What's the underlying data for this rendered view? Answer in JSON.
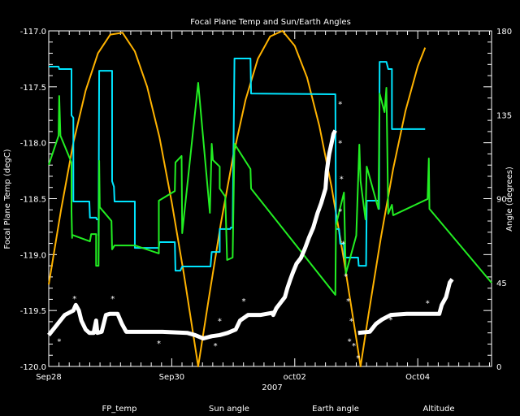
{
  "chart_data": {
    "type": "line",
    "title": "Focal Plane Temp and Sun/Earth Angles",
    "xlabel": "2007",
    "ylabel": "Focal Plane Temp (degC)",
    "y2label": "Angle (degrees)",
    "x_units": "days since Sep28 00:00",
    "xlim": [
      0,
      7.2
    ],
    "ylim": [
      -120.0,
      -117.0
    ],
    "y2lim": [
      0,
      180
    ],
    "x_ticks": [
      {
        "v": 0,
        "label": "Sep28"
      },
      {
        "v": 2,
        "label": "Sep30"
      },
      {
        "v": 4,
        "label": "oct02"
      },
      {
        "v": 6,
        "label": "Oct04"
      }
    ],
    "y_ticks": [
      {
        "v": -117.0,
        "label": "-117.0"
      },
      {
        "v": -117.5,
        "label": "-117.5"
      },
      {
        "v": -118.0,
        "label": "-118.0"
      },
      {
        "v": -118.5,
        "label": "-118.5"
      },
      {
        "v": -119.0,
        "label": "-119.0"
      },
      {
        "v": -119.5,
        "label": "-119.5"
      },
      {
        "v": -120.0,
        "label": "-120.0"
      }
    ],
    "y2_ticks": [
      {
        "v": 0,
        "label": "0"
      },
      {
        "v": 45,
        "label": "45"
      },
      {
        "v": 90,
        "label": "90"
      },
      {
        "v": 135,
        "label": "135"
      },
      {
        "v": 180,
        "label": "180"
      }
    ],
    "grid": false,
    "legend_placement": "bottom",
    "series": [
      {
        "name": "FP_temp",
        "color": "#ffffff",
        "axis": "left",
        "style": "scatter-line",
        "points": [
          [
            0,
            -119.72
          ],
          [
            0.13,
            -119.63
          ],
          [
            0.26,
            -119.54
          ],
          [
            0.4,
            -119.5
          ],
          [
            0.44,
            -119.45
          ],
          [
            0.49,
            -119.5
          ],
          [
            0.53,
            -119.59
          ],
          [
            0.6,
            -119.67
          ],
          [
            0.66,
            -119.7
          ],
          [
            0.73,
            -119.7
          ],
          [
            0.77,
            -119.59
          ],
          [
            0.79,
            -119.7
          ],
          [
            0.86,
            -119.69
          ],
          [
            0.93,
            -119.54
          ],
          [
            0.99,
            -119.53
          ],
          [
            1.12,
            -119.53
          ],
          [
            1.19,
            -119.62
          ],
          [
            1.26,
            -119.69
          ],
          [
            1.46,
            -119.69
          ],
          [
            1.85,
            -119.69
          ],
          [
            2.25,
            -119.7
          ],
          [
            2.38,
            -119.72
          ],
          [
            2.51,
            -119.75
          ],
          [
            2.65,
            -119.73
          ],
          [
            2.78,
            -119.72
          ],
          [
            2.91,
            -119.7
          ],
          [
            3.04,
            -119.67
          ],
          [
            3.11,
            -119.59
          ],
          [
            3.24,
            -119.54
          ],
          [
            3.44,
            -119.54
          ],
          [
            3.64,
            -119.52
          ],
          [
            3.65,
            -119.54
          ],
          [
            3.7,
            -119.48
          ],
          [
            3.77,
            -119.43
          ],
          [
            3.84,
            -119.38
          ],
          [
            3.88,
            -119.3
          ],
          [
            3.93,
            -119.22
          ],
          [
            3.97,
            -119.16
          ],
          [
            4.03,
            -119.08
          ],
          [
            4.1,
            -119.03
          ],
          [
            4.17,
            -118.94
          ],
          [
            4.23,
            -118.85
          ],
          [
            4.3,
            -118.76
          ],
          [
            4.37,
            -118.63
          ],
          [
            4.43,
            -118.54
          ],
          [
            4.5,
            -118.41
          ],
          [
            4.52,
            -118.26
          ],
          [
            4.56,
            -118.1
          ],
          [
            4.6,
            -118.0
          ],
          [
            4.63,
            -117.92
          ],
          [
            4.66,
            -117.89
          ]
        ],
        "gap_after_index": 50,
        "points_after": [
          [
            5.03,
            -119.7
          ],
          [
            5.22,
            -119.69
          ],
          [
            5.32,
            -119.62
          ],
          [
            5.42,
            -119.58
          ],
          [
            5.56,
            -119.54
          ],
          [
            5.82,
            -119.53
          ],
          [
            6.35,
            -119.53
          ],
          [
            6.39,
            -119.45
          ],
          [
            6.46,
            -119.38
          ],
          [
            6.52,
            -119.25
          ],
          [
            6.56,
            -119.22
          ]
        ],
        "outliers": [
          [
            4.74,
            -117.65
          ],
          [
            4.74,
            -118.0
          ],
          [
            4.76,
            -118.32
          ],
          [
            4.74,
            -118.61
          ],
          [
            4.79,
            -118.9
          ],
          [
            4.83,
            -119.19
          ],
          [
            4.87,
            -119.41
          ],
          [
            4.92,
            -119.59
          ],
          [
            4.89,
            -119.77
          ],
          [
            4.96,
            -119.81
          ],
          [
            5.03,
            -119.92
          ],
          [
            0.42,
            -119.39
          ],
          [
            1.04,
            -119.39
          ],
          [
            0.17,
            -119.77
          ],
          [
            1.79,
            -119.79
          ],
          [
            2.71,
            -119.81
          ],
          [
            3.17,
            -119.41
          ],
          [
            2.78,
            -119.59
          ],
          [
            6.16,
            -119.43
          ],
          [
            5.56,
            -119.58
          ]
        ]
      },
      {
        "name": "Sun angle",
        "color": "#00e5ff",
        "axis": "right",
        "points": [
          [
            0,
            160.8
          ],
          [
            0.16,
            160.8
          ],
          [
            0.17,
            159.5
          ],
          [
            0.37,
            159.5
          ],
          [
            0.37,
            134.7
          ],
          [
            0.4,
            133.4
          ],
          [
            0.4,
            88.5
          ],
          [
            0.66,
            88.5
          ],
          [
            0.67,
            79.8
          ],
          [
            0.77,
            79.8
          ],
          [
            0.78,
            78.9
          ],
          [
            0.81,
            78.9
          ],
          [
            0.81,
            70.2
          ],
          [
            0.82,
            158.6
          ],
          [
            1.03,
            158.6
          ],
          [
            1.03,
            99.4
          ],
          [
            1.06,
            96.4
          ],
          [
            1.07,
            88.5
          ],
          [
            1.4,
            88.5
          ],
          [
            1.4,
            63.6
          ],
          [
            1.79,
            63.6
          ],
          [
            1.8,
            66.7
          ],
          [
            2.05,
            66.7
          ],
          [
            2.06,
            51.4
          ],
          [
            2.14,
            51.4
          ],
          [
            2.17,
            53.6
          ],
          [
            2.63,
            53.6
          ],
          [
            2.65,
            61.4
          ],
          [
            2.78,
            61.4
          ],
          [
            2.78,
            73.7
          ],
          [
            2.95,
            73.7
          ],
          [
            2.96,
            74.5
          ],
          [
            2.99,
            74.5
          ],
          [
            3.02,
            165.2
          ],
          [
            3.28,
            165.2
          ],
          [
            3.29,
            146.4
          ],
          [
            4.66,
            146.0
          ],
          [
            4.67,
            73.7
          ],
          [
            4.72,
            73.7
          ],
          [
            4.74,
            65.8
          ],
          [
            4.8,
            65.8
          ],
          [
            4.81,
            58.4
          ],
          [
            5.03,
            58.4
          ],
          [
            5.04,
            54.0
          ],
          [
            5.16,
            54.0
          ],
          [
            5.17,
            88.9
          ],
          [
            5.36,
            88.9
          ],
          [
            5.37,
            84.5
          ],
          [
            5.38,
            163.4
          ],
          [
            5.49,
            163.4
          ],
          [
            5.52,
            159.5
          ],
          [
            5.58,
            159.5
          ],
          [
            5.58,
            127.3
          ],
          [
            6.12,
            127.3
          ]
        ]
      },
      {
        "name": "Earth angle",
        "color": "#22ee22",
        "axis": "right",
        "points": [
          [
            0,
            108.1
          ],
          [
            0.16,
            123.8
          ],
          [
            0.17,
            145.1
          ],
          [
            0.19,
            123.8
          ],
          [
            0.37,
            109.4
          ],
          [
            0.37,
            83.2
          ],
          [
            0.38,
            68.9
          ],
          [
            0.38,
            70.6
          ],
          [
            0.67,
            67.1
          ],
          [
            0.69,
            71.0
          ],
          [
            0.77,
            71.0
          ],
          [
            0.77,
            54.0
          ],
          [
            0.81,
            54.0
          ],
          [
            0.82,
            110.3
          ],
          [
            0.83,
            85.4
          ],
          [
            1.02,
            78.0
          ],
          [
            1.03,
            62.8
          ],
          [
            1.07,
            64.9
          ],
          [
            1.4,
            64.9
          ],
          [
            1.79,
            60.6
          ],
          [
            1.79,
            88.9
          ],
          [
            2.05,
            94.1
          ],
          [
            2.06,
            109.4
          ],
          [
            2.16,
            112.9
          ],
          [
            2.17,
            71.5
          ],
          [
            2.43,
            152.1
          ],
          [
            2.62,
            82.4
          ],
          [
            2.65,
            119.4
          ],
          [
            2.67,
            110.7
          ],
          [
            2.78,
            107.2
          ],
          [
            2.78,
            95.4
          ],
          [
            2.87,
            91.1
          ],
          [
            2.9,
            57.1
          ],
          [
            2.99,
            58.4
          ],
          [
            3.02,
            119.4
          ],
          [
            3.28,
            105.9
          ],
          [
            3.29,
            95.4
          ],
          [
            4.66,
            38.4
          ],
          [
            4.67,
            75.8
          ],
          [
            4.8,
            93.3
          ],
          [
            4.83,
            49.7
          ],
          [
            5.0,
            70.2
          ],
          [
            5.05,
            119.0
          ],
          [
            5.07,
            99.4
          ],
          [
            5.15,
            78.9
          ],
          [
            5.17,
            107.2
          ],
          [
            5.36,
            84.5
          ],
          [
            5.38,
            146.4
          ],
          [
            5.46,
            136.4
          ],
          [
            5.49,
            149.5
          ],
          [
            5.52,
            81.9
          ],
          [
            5.58,
            86.7
          ],
          [
            5.6,
            81.1
          ],
          [
            6.16,
            89.8
          ],
          [
            6.18,
            111.6
          ],
          [
            6.19,
            84.5
          ],
          [
            7.2,
            44.9
          ]
        ]
      },
      {
        "name": "Altitude",
        "color": "#ffb300",
        "axis": "right",
        "points": [
          [
            0,
            44
          ],
          [
            0.2,
            84
          ],
          [
            0.4,
            120
          ],
          [
            0.6,
            148
          ],
          [
            0.8,
            168
          ],
          [
            1.0,
            178
          ],
          [
            1.2,
            179
          ],
          [
            1.4,
            169
          ],
          [
            1.6,
            150
          ],
          [
            1.8,
            123
          ],
          [
            2.0,
            88
          ],
          [
            2.2,
            49
          ],
          [
            2.43,
            0
          ],
          [
            2.6,
            36
          ],
          [
            2.8,
            77
          ],
          [
            3.0,
            113
          ],
          [
            3.2,
            143
          ],
          [
            3.4,
            165
          ],
          [
            3.6,
            177
          ],
          [
            3.8,
            180
          ],
          [
            4.0,
            172
          ],
          [
            4.2,
            155
          ],
          [
            4.4,
            129
          ],
          [
            4.6,
            96
          ],
          [
            4.8,
            57
          ],
          [
            5.0,
            15
          ],
          [
            5.07,
            0
          ],
          [
            5.2,
            28
          ],
          [
            5.4,
            69
          ],
          [
            5.6,
            106
          ],
          [
            5.8,
            137
          ],
          [
            6.0,
            161
          ],
          [
            6.12,
            171
          ]
        ]
      }
    ]
  }
}
